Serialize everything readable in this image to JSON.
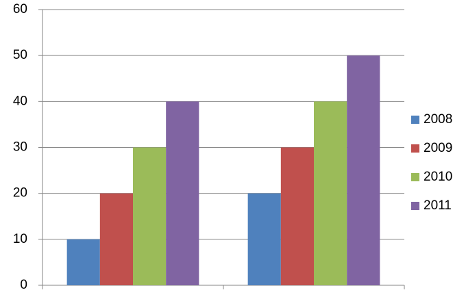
{
  "chart_data": {
    "type": "bar",
    "categories": [
      null,
      null
    ],
    "series": [
      {
        "name": "2008",
        "color": "#4f81bd",
        "values": [
          10,
          20
        ]
      },
      {
        "name": "2009",
        "color": "#c0504d",
        "values": [
          20,
          30
        ]
      },
      {
        "name": "2010",
        "color": "#9bbb59",
        "values": [
          30,
          40
        ]
      },
      {
        "name": "2011",
        "color": "#8064a2",
        "values": [
          40,
          50
        ]
      }
    ],
    "ylim": [
      0,
      60
    ],
    "yticks": [
      0,
      10,
      20,
      30,
      40,
      50,
      60
    ],
    "grid": true,
    "legend": "right"
  }
}
